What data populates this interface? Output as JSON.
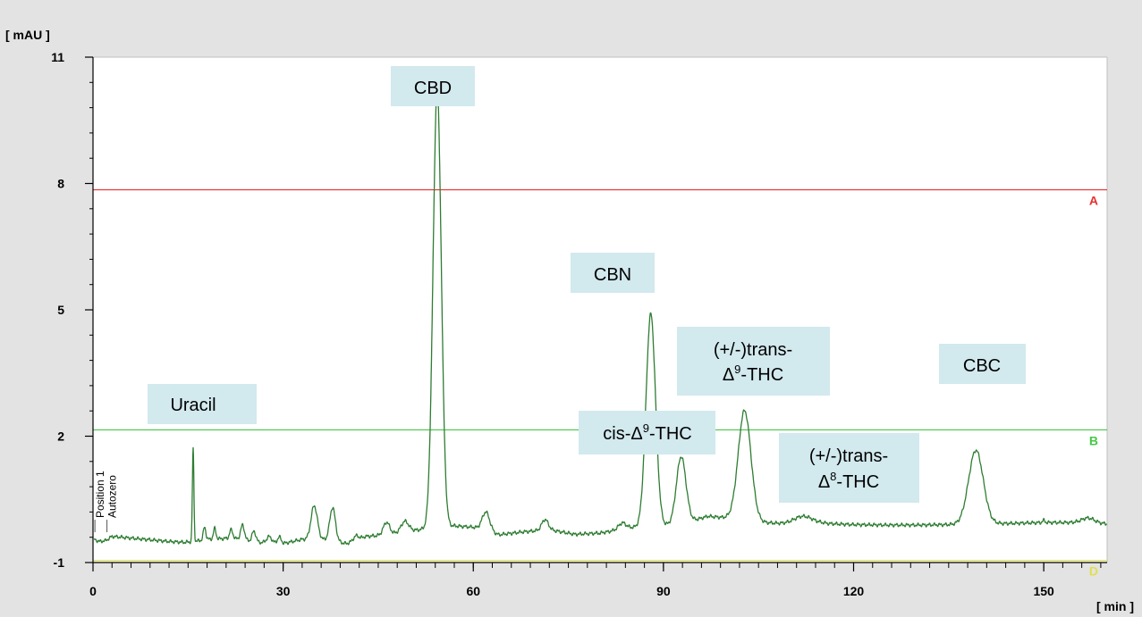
{
  "chart_data": {
    "type": "line",
    "xlabel": "[ min ]",
    "ylabel": "[ mAU ]",
    "xlim": [
      0,
      160
    ],
    "ylim": [
      -1,
      11
    ],
    "x_ticks": [
      0,
      30,
      60,
      90,
      120,
      150
    ],
    "y_ticks": [
      -1,
      2,
      5,
      8,
      11
    ],
    "series_color": "#2e7d32",
    "reference_lines": [
      {
        "label": "A",
        "y": 7.85,
        "color": "#e83030"
      },
      {
        "label": "B",
        "y": 2.15,
        "color": "#46c846"
      },
      {
        "label": "D",
        "y": -0.95,
        "color": "#e0e050"
      }
    ],
    "event_markers": [
      {
        "x": 0.3,
        "label": "Position 1"
      },
      {
        "x": 2.2,
        "label": "Autozero"
      }
    ],
    "peak_labels": [
      {
        "text": "Uracil"
      },
      {
        "text": "CBD"
      },
      {
        "text": "CBN"
      },
      {
        "prefix": "cis-Δ",
        "sup": "9",
        "suffix": "-THC"
      },
      {
        "line1": "(+/-)trans-",
        "prefix": "Δ",
        "sup": "9",
        "suffix": "-THC"
      },
      {
        "line1": "(+/-)trans-",
        "prefix": "Δ",
        "sup": "8",
        "suffix": "-THC"
      },
      {
        "text": "CBC"
      }
    ],
    "baseline": [
      [
        0.2,
        -0.45
      ],
      [
        1,
        -0.5
      ],
      [
        2,
        -0.48
      ],
      [
        3,
        -0.38
      ],
      [
        6,
        -0.42
      ],
      [
        9,
        -0.46
      ],
      [
        12,
        -0.5
      ],
      [
        14.5,
        -0.52
      ],
      [
        16,
        -0.5
      ],
      [
        18,
        -0.45
      ],
      [
        22,
        -0.42
      ],
      [
        26,
        -0.52
      ],
      [
        30,
        -0.55
      ],
      [
        33,
        -0.45
      ],
      [
        36,
        -0.45
      ],
      [
        40,
        -0.55
      ],
      [
        43,
        -0.38
      ],
      [
        46,
        -0.35
      ],
      [
        50,
        -0.25
      ],
      [
        52.5,
        -0.2
      ],
      [
        57,
        -0.13
      ],
      [
        60,
        -0.16
      ],
      [
        64,
        -0.34
      ],
      [
        68,
        -0.27
      ],
      [
        72,
        -0.22
      ],
      [
        76,
        -0.33
      ],
      [
        80,
        -0.3
      ],
      [
        85,
        -0.17
      ],
      [
        88,
        -0.15
      ],
      [
        93,
        -0.08
      ],
      [
        97,
        0.1
      ],
      [
        100,
        0.06
      ],
      [
        106,
        -0.05
      ],
      [
        110,
        -0.09
      ],
      [
        115,
        -0.07
      ],
      [
        120,
        -0.1
      ],
      [
        125,
        -0.11
      ],
      [
        130,
        -0.11
      ],
      [
        135,
        -0.1
      ],
      [
        140,
        -0.08
      ],
      [
        145,
        -0.07
      ],
      [
        150,
        -0.05
      ],
      [
        155,
        -0.05
      ],
      [
        160,
        -0.08
      ]
    ],
    "peaks": [
      {
        "rt": 15.8,
        "height": 2.22,
        "width": 0.12
      },
      {
        "rt": 17.6,
        "height": 0.3,
        "width": 0.2
      },
      {
        "rt": 19.2,
        "height": 0.25,
        "width": 0.2
      },
      {
        "rt": 21.8,
        "height": 0.2,
        "width": 0.25
      },
      {
        "rt": 23.6,
        "height": 0.35,
        "width": 0.3
      },
      {
        "rt": 25.4,
        "height": 0.25,
        "width": 0.3
      },
      {
        "rt": 27.8,
        "height": 0.15,
        "width": 0.4
      },
      {
        "rt": 29.4,
        "height": 0.15,
        "width": 0.3
      },
      {
        "rt": 34.9,
        "height": 0.8,
        "width": 0.5
      },
      {
        "rt": 37.8,
        "height": 0.8,
        "width": 0.45
      },
      {
        "rt": 41.5,
        "height": 0.1,
        "width": 0.4
      },
      {
        "rt": 46.3,
        "height": 0.3,
        "width": 0.5
      },
      {
        "rt": 49.2,
        "height": 0.25,
        "width": 0.6
      },
      {
        "rt": 54.3,
        "height": 10.4,
        "width": 0.65
      },
      {
        "rt": 62.0,
        "height": 0.45,
        "width": 0.6
      },
      {
        "rt": 71.3,
        "height": 0.25,
        "width": 0.5
      },
      {
        "rt": 83.5,
        "height": 0.15,
        "width": 0.6
      },
      {
        "rt": 88.0,
        "height": 5.05,
        "width": 0.75
      },
      {
        "rt": 92.8,
        "height": 1.6,
        "width": 0.75
      },
      {
        "rt": 102.8,
        "height": 2.6,
        "width": 1.0
      },
      {
        "rt": 112.0,
        "height": 0.18,
        "width": 1.5
      },
      {
        "rt": 139.3,
        "height": 1.75,
        "width": 1.15
      },
      {
        "rt": 150.0,
        "height": 0.05,
        "width": 0.2
      },
      {
        "rt": 157.0,
        "height": 0.12,
        "width": 1.0
      }
    ]
  }
}
